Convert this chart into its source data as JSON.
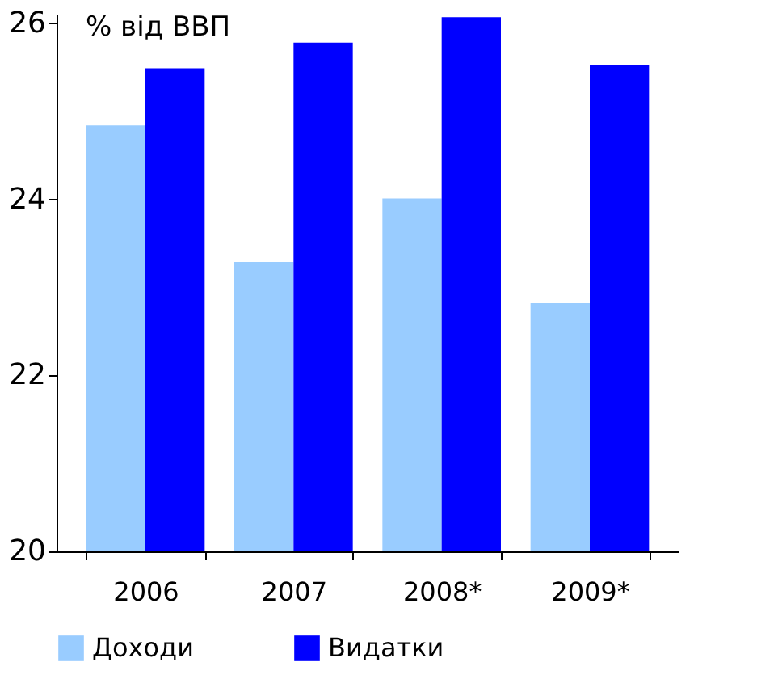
{
  "chart_data": {
    "type": "bar",
    "categories": [
      "2006",
      "2007",
      "2008*",
      "2009*"
    ],
    "series": [
      {
        "name": "Доходи",
        "color": "#99ccff",
        "values": [
          24.84,
          23.29,
          24.01,
          22.82
        ]
      },
      {
        "name": "Видатки",
        "color": "#0000ff",
        "values": [
          25.49,
          25.78,
          26.07,
          25.53
        ]
      }
    ],
    "ylim": [
      20,
      26.1
    ],
    "yticks": [
      20,
      22,
      24,
      26
    ],
    "annotations": [
      "% від ВВП"
    ],
    "grid": false,
    "legend": "bottom"
  }
}
